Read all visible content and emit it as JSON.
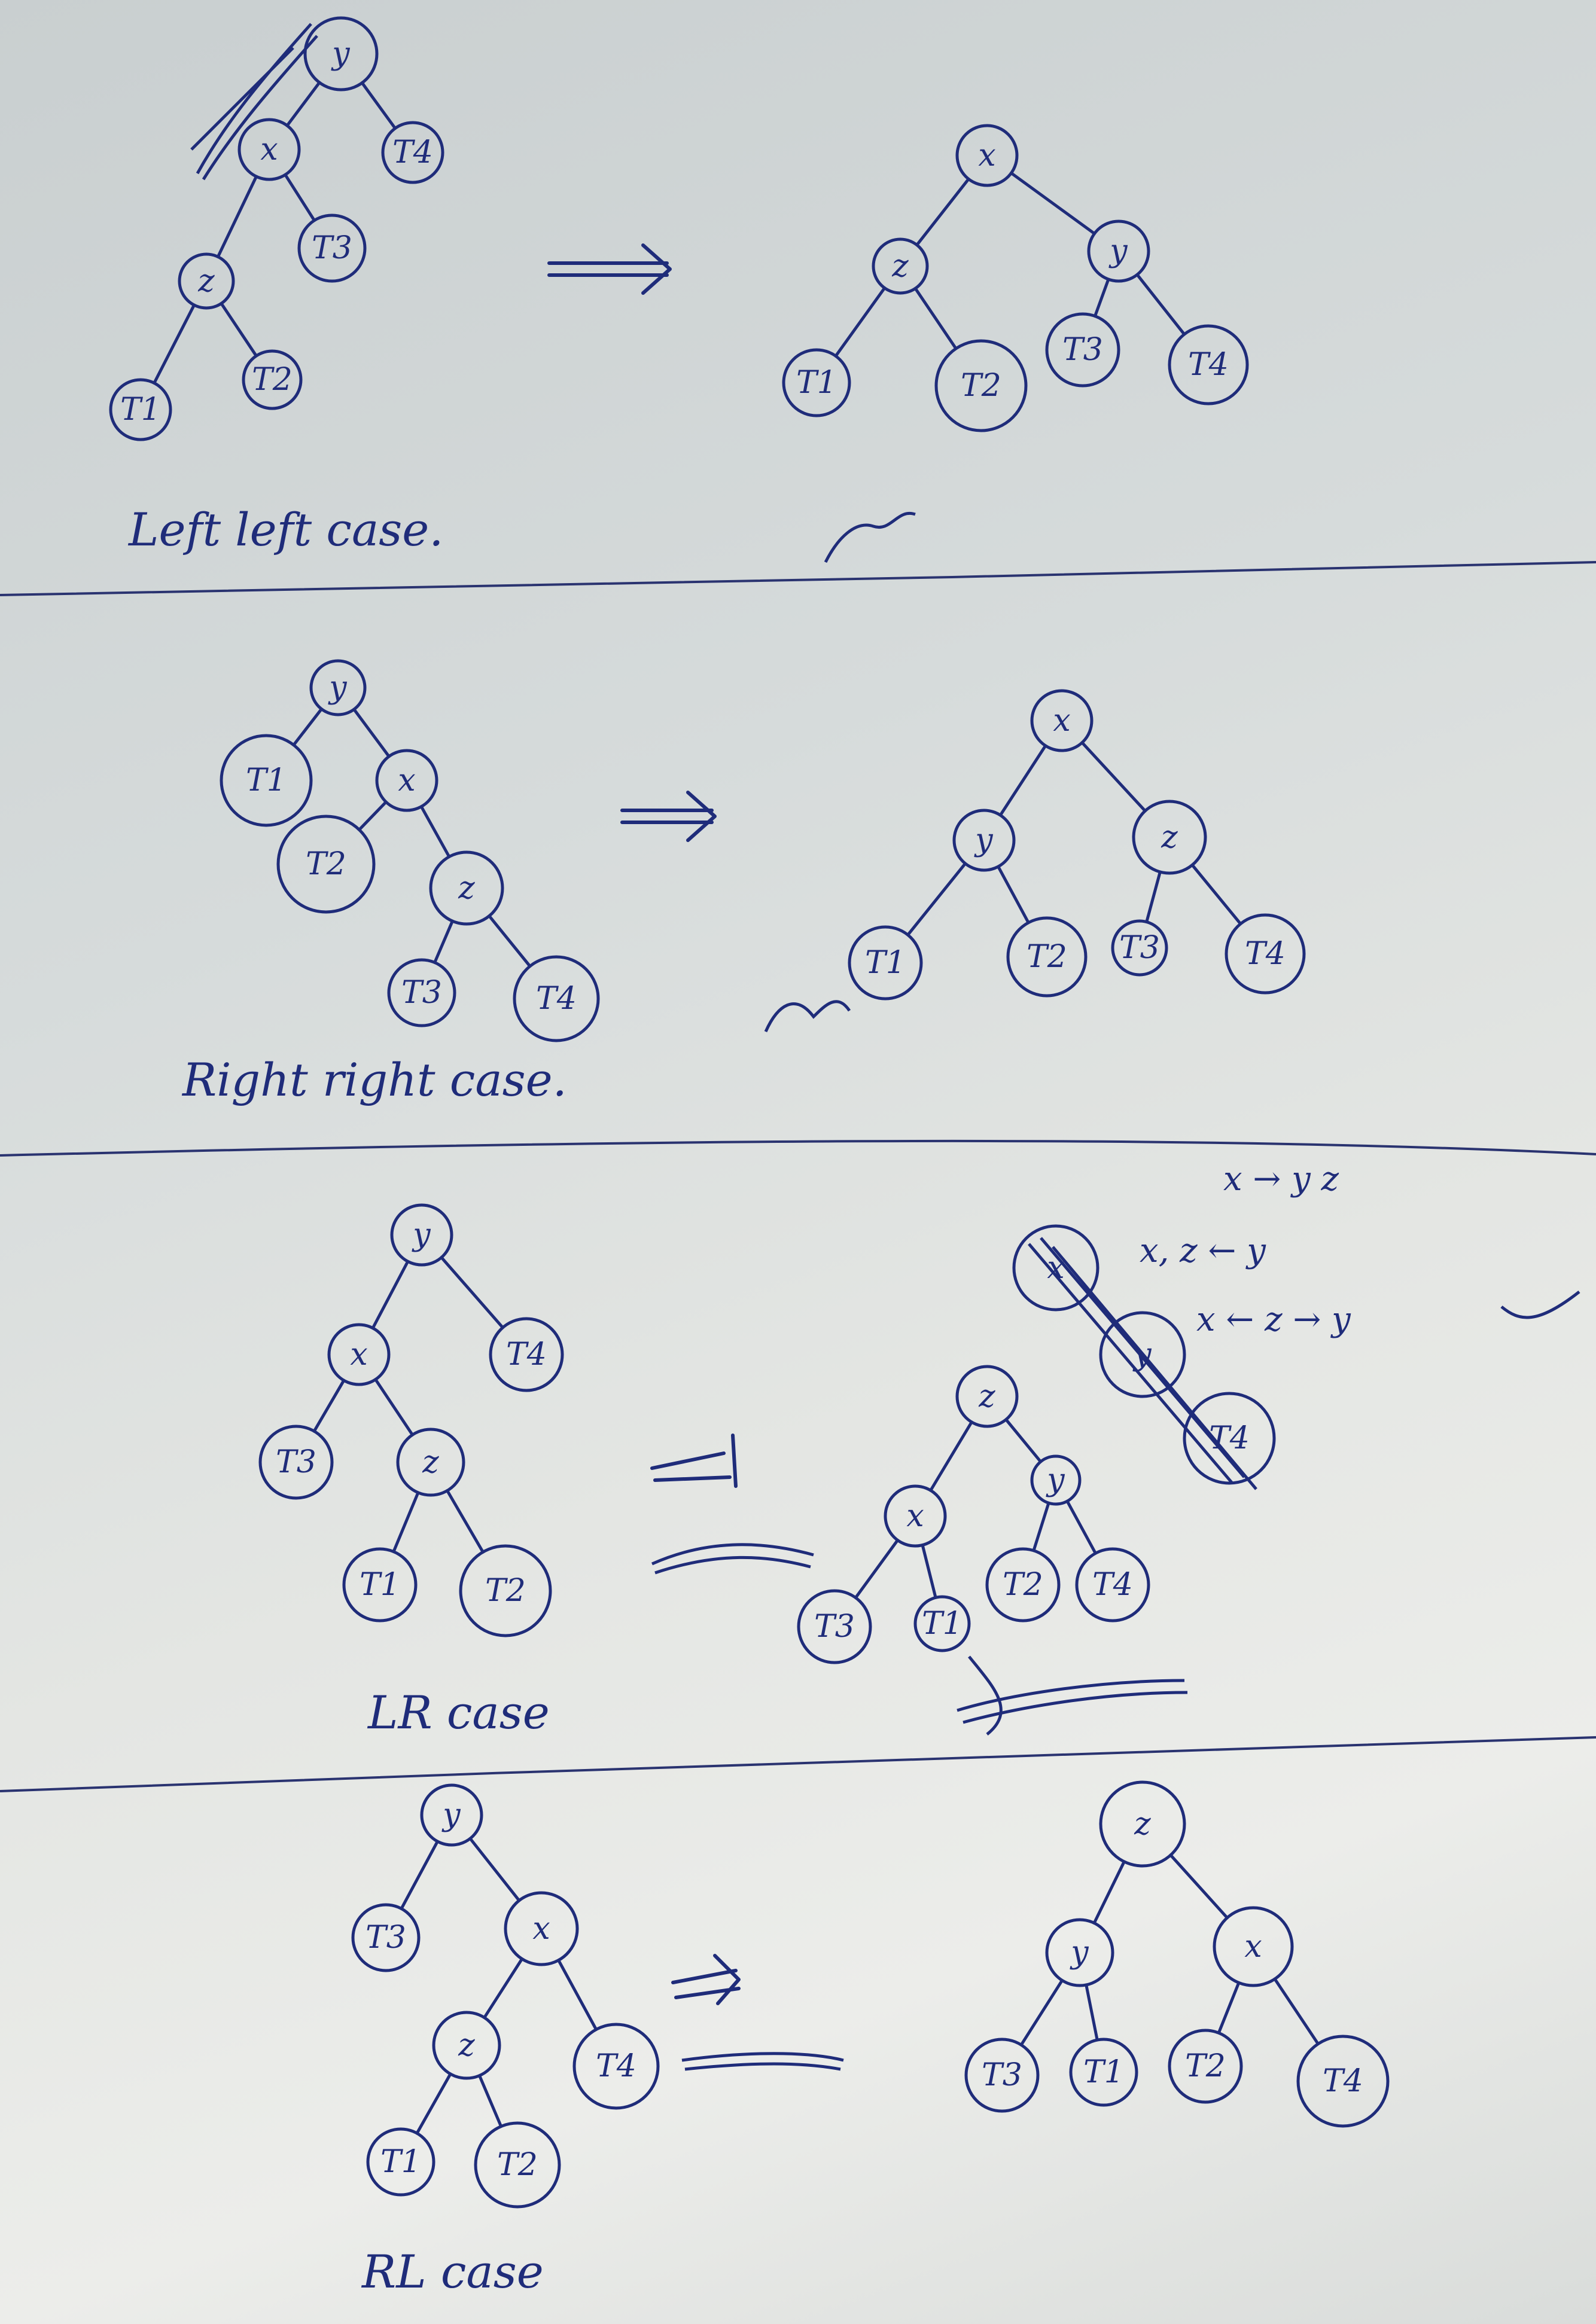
{
  "colors": {
    "ink": "#1f2c7a",
    "paper": "#d6dbdb"
  },
  "sections": [
    {
      "caption": "Left left case.",
      "before": {
        "nodes": [
          {
            "id": "y",
            "label": "y"
          },
          {
            "id": "x",
            "label": "x"
          },
          {
            "id": "T4",
            "label": "T4"
          },
          {
            "id": "z",
            "label": "z"
          },
          {
            "id": "T3",
            "label": "T3"
          },
          {
            "id": "T1",
            "label": "T1"
          },
          {
            "id": "T2",
            "label": "T2"
          }
        ],
        "edges": [
          [
            "y",
            "x"
          ],
          [
            "y",
            "T4"
          ],
          [
            "x",
            "z"
          ],
          [
            "x",
            "T3"
          ],
          [
            "z",
            "T1"
          ],
          [
            "z",
            "T2"
          ]
        ]
      },
      "after": {
        "nodes": [
          {
            "id": "x",
            "label": "x"
          },
          {
            "id": "z",
            "label": "z"
          },
          {
            "id": "y",
            "label": "y"
          },
          {
            "id": "T1",
            "label": "T1"
          },
          {
            "id": "T2",
            "label": "T2"
          },
          {
            "id": "T3",
            "label": "T3"
          },
          {
            "id": "T4",
            "label": "T4"
          }
        ],
        "edges": [
          [
            "x",
            "z"
          ],
          [
            "x",
            "y"
          ],
          [
            "z",
            "T1"
          ],
          [
            "z",
            "T2"
          ],
          [
            "y",
            "T3"
          ],
          [
            "y",
            "T4"
          ]
        ]
      }
    },
    {
      "caption": "Right right case.",
      "before": {
        "nodes": [
          {
            "id": "y",
            "label": "y"
          },
          {
            "id": "T1",
            "label": "T1"
          },
          {
            "id": "x",
            "label": "x"
          },
          {
            "id": "T2",
            "label": "T2"
          },
          {
            "id": "z",
            "label": "z"
          },
          {
            "id": "T3",
            "label": "T3"
          },
          {
            "id": "T4",
            "label": "T4"
          }
        ],
        "edges": [
          [
            "y",
            "T1"
          ],
          [
            "y",
            "x"
          ],
          [
            "x",
            "T2"
          ],
          [
            "x",
            "z"
          ],
          [
            "z",
            "T3"
          ],
          [
            "z",
            "T4"
          ]
        ]
      },
      "after": {
        "nodes": [
          {
            "id": "x",
            "label": "x"
          },
          {
            "id": "y",
            "label": "y"
          },
          {
            "id": "z",
            "label": "z"
          },
          {
            "id": "T1",
            "label": "T1"
          },
          {
            "id": "T2",
            "label": "T2"
          },
          {
            "id": "T3",
            "label": "T3"
          },
          {
            "id": "T4",
            "label": "T4"
          }
        ],
        "edges": [
          [
            "x",
            "y"
          ],
          [
            "x",
            "z"
          ],
          [
            "y",
            "T1"
          ],
          [
            "y",
            "T2"
          ],
          [
            "z",
            "T3"
          ],
          [
            "z",
            "T4"
          ]
        ]
      }
    },
    {
      "caption": "LR case",
      "notes": [
        "x → y z",
        "x, z ← y",
        "x ← z → y"
      ],
      "before": {
        "nodes": [
          {
            "id": "y",
            "label": "y"
          },
          {
            "id": "x",
            "label": "x"
          },
          {
            "id": "T4",
            "label": "T4"
          },
          {
            "id": "T3",
            "label": "T3"
          },
          {
            "id": "z",
            "label": "z"
          },
          {
            "id": "T1",
            "label": "T1"
          },
          {
            "id": "T2",
            "label": "T2"
          }
        ],
        "edges": [
          [
            "y",
            "x"
          ],
          [
            "y",
            "T4"
          ],
          [
            "x",
            "T3"
          ],
          [
            "x",
            "z"
          ],
          [
            "z",
            "T1"
          ],
          [
            "z",
            "T2"
          ]
        ]
      },
      "after": {
        "nodes": [
          {
            "id": "z",
            "label": "z"
          },
          {
            "id": "x",
            "label": "x"
          },
          {
            "id": "y",
            "label": "y"
          },
          {
            "id": "T3",
            "label": "T3"
          },
          {
            "id": "T1",
            "label": "T1"
          },
          {
            "id": "T2",
            "label": "T2"
          },
          {
            "id": "T4",
            "label": "T4"
          }
        ],
        "edges": [
          [
            "z",
            "x"
          ],
          [
            "z",
            "y"
          ],
          [
            "x",
            "T3"
          ],
          [
            "x",
            "T1"
          ],
          [
            "y",
            "T2"
          ],
          [
            "y",
            "T4"
          ]
        ]
      }
    },
    {
      "caption": "RL case",
      "before": {
        "nodes": [
          {
            "id": "y",
            "label": "y"
          },
          {
            "id": "T3",
            "label": "T3"
          },
          {
            "id": "x",
            "label": "x"
          },
          {
            "id": "z",
            "label": "z"
          },
          {
            "id": "T4",
            "label": "T4"
          },
          {
            "id": "T1",
            "label": "T1"
          },
          {
            "id": "T2",
            "label": "T2"
          }
        ],
        "edges": [
          [
            "y",
            "T3"
          ],
          [
            "y",
            "x"
          ],
          [
            "x",
            "z"
          ],
          [
            "x",
            "T4"
          ],
          [
            "z",
            "T1"
          ],
          [
            "z",
            "T2"
          ]
        ]
      },
      "after": {
        "nodes": [
          {
            "id": "z",
            "label": "z"
          },
          {
            "id": "y",
            "label": "y"
          },
          {
            "id": "x",
            "label": "x"
          },
          {
            "id": "T3",
            "label": "T3"
          },
          {
            "id": "T1",
            "label": "T1"
          },
          {
            "id": "T2",
            "label": "T2"
          },
          {
            "id": "T4",
            "label": "T4"
          }
        ],
        "edges": [
          [
            "z",
            "y"
          ],
          [
            "z",
            "x"
          ],
          [
            "y",
            "T3"
          ],
          [
            "y",
            "T1"
          ],
          [
            "x",
            "T2"
          ],
          [
            "x",
            "T4"
          ]
        ]
      }
    }
  ]
}
